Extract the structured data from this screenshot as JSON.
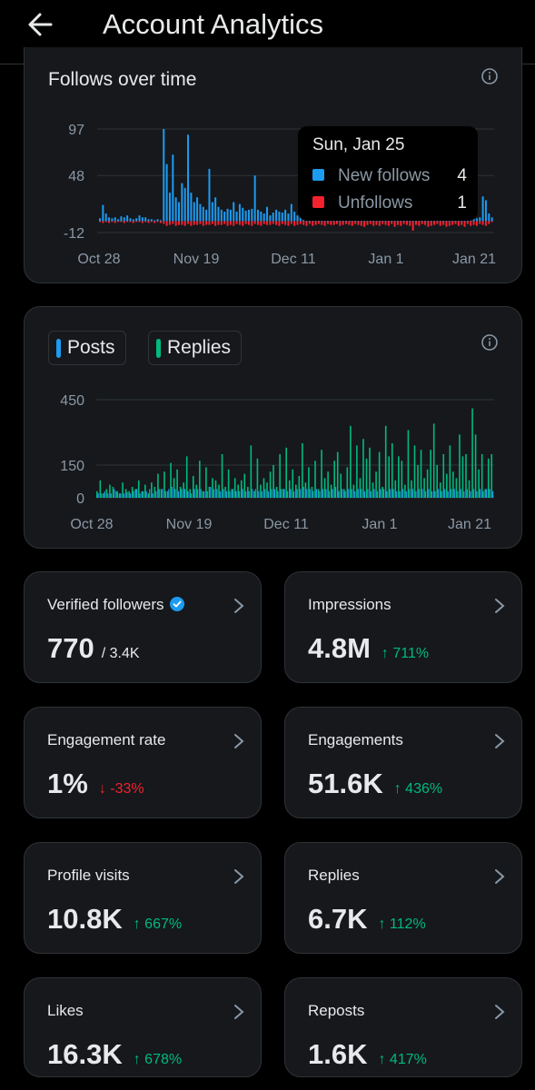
{
  "header": {
    "title": "Account Analytics"
  },
  "follows_card": {
    "title": "Follows over time"
  },
  "tooltip": {
    "date": "Sun, Jan 25",
    "rows": [
      {
        "label": "New follows",
        "value": "4",
        "color": "#1d9bf0"
      },
      {
        "label": "Unfollows",
        "value": "1",
        "color": "#f4212e"
      }
    ]
  },
  "posts_card": {
    "legend": [
      {
        "label": "Posts",
        "color": "#1d9bf0"
      },
      {
        "label": "Replies",
        "color": "#00ba7c"
      }
    ]
  },
  "chart_data": [
    {
      "type": "bar",
      "title": "Follows over time",
      "x_tick_labels": [
        "Oct 28",
        "Nov 19",
        "Dec 11",
        "Jan 1",
        "Jan 21"
      ],
      "y_tick_labels": [
        "97",
        "48",
        "-12"
      ],
      "ylim": [
        -12,
        97
      ],
      "series": [
        {
          "name": "New follows",
          "color": "#1d9bf0",
          "values": [
            3,
            17,
            8,
            4,
            3,
            4,
            2,
            5,
            4,
            6,
            3,
            2,
            3,
            6,
            4,
            4,
            2,
            2,
            1,
            2,
            1,
            97,
            60,
            30,
            70,
            25,
            20,
            40,
            35,
            91,
            30,
            20,
            25,
            18,
            15,
            12,
            55,
            20,
            25,
            15,
            12,
            10,
            13,
            12,
            20,
            10,
            18,
            14,
            11,
            12,
            13,
            48,
            12,
            10,
            8,
            15,
            6,
            9,
            12,
            10,
            9,
            12,
            8,
            18,
            10,
            6,
            12,
            22,
            15,
            28,
            9,
            6,
            14,
            8,
            8,
            12,
            7,
            4,
            6,
            5,
            8,
            30,
            5,
            4,
            3,
            8,
            4,
            5,
            3,
            2,
            4,
            3,
            2,
            5,
            3,
            6,
            4,
            5,
            3,
            2,
            5,
            5,
            4,
            7,
            12,
            9,
            4,
            6,
            5,
            4,
            3,
            4,
            6,
            3,
            5,
            3,
            4,
            4,
            4,
            6,
            4,
            8,
            5,
            6,
            3,
            4,
            26,
            22,
            8,
            4
          ]
        },
        {
          "name": "Unfollows",
          "color": "#f4212e",
          "values": [
            1,
            2,
            1,
            2,
            1,
            2,
            1,
            1,
            2,
            1,
            1,
            2,
            1,
            1,
            2,
            1,
            2,
            1,
            2,
            1,
            2,
            3,
            5,
            4,
            3,
            5,
            4,
            4,
            5,
            3,
            5,
            4,
            4,
            3,
            5,
            4,
            4,
            3,
            5,
            4,
            4,
            3,
            5,
            4,
            5,
            3,
            4,
            5,
            3,
            4,
            5,
            3,
            4,
            5,
            3,
            4,
            4,
            3,
            4,
            5,
            3,
            4,
            5,
            3,
            5,
            4,
            3,
            4,
            5,
            3,
            5,
            4,
            3,
            4,
            5,
            3,
            4,
            4,
            3,
            5,
            4,
            3,
            4,
            5,
            3,
            4,
            5,
            6,
            4,
            3,
            5,
            4,
            5,
            3,
            4,
            5,
            3,
            6,
            4,
            5,
            3,
            4,
            5,
            10,
            4,
            5,
            3,
            4,
            6,
            5,
            4,
            3,
            5,
            4,
            6,
            5,
            4,
            3,
            5,
            4,
            6,
            3,
            5,
            4,
            5,
            3,
            4,
            5,
            3,
            1
          ]
        }
      ]
    },
    {
      "type": "bar",
      "x_tick_labels": [
        "Oct 28",
        "Nov 19",
        "Dec 11",
        "Jan 1",
        "Jan 21"
      ],
      "y_tick_labels": [
        "450",
        "150",
        "0"
      ],
      "ylim": [
        0,
        450
      ],
      "series": [
        {
          "name": "Posts",
          "color": "#1d9bf0",
          "values": [
            20,
            20,
            30,
            20,
            20,
            40,
            30,
            20,
            20,
            25,
            20,
            30,
            40,
            20,
            30,
            30,
            40,
            20,
            30,
            40,
            40,
            30,
            40,
            50,
            40,
            30,
            40,
            40,
            30,
            20,
            40,
            40,
            40,
            30,
            30,
            50,
            40,
            40,
            30,
            40,
            30,
            30,
            40,
            30,
            30,
            40,
            30,
            30,
            40,
            40,
            30,
            30,
            40,
            30,
            40,
            40,
            30,
            40,
            40,
            30,
            40,
            30,
            40,
            40,
            50,
            40,
            40,
            30,
            40,
            30,
            40,
            40,
            30,
            40,
            50,
            30,
            40,
            30,
            40,
            40,
            30,
            40,
            40,
            30,
            40,
            30,
            40,
            30,
            40,
            40,
            30,
            40,
            40,
            30,
            30,
            40,
            30,
            40,
            40,
            30,
            40,
            40,
            30,
            40,
            30,
            30,
            40,
            30,
            40,
            30,
            40,
            40,
            30,
            40,
            30,
            40,
            30,
            40,
            30,
            40,
            30,
            40,
            40,
            30,
            40,
            30,
            30
          ]
        },
        {
          "name": "Replies",
          "color": "#00ba7c",
          "values": [
            30,
            80,
            20,
            40,
            60,
            50,
            30,
            20,
            70,
            40,
            30,
            50,
            40,
            80,
            30,
            60,
            20,
            70,
            50,
            110,
            40,
            120,
            30,
            160,
            90,
            130,
            50,
            70,
            190,
            40,
            100,
            60,
            170,
            30,
            140,
            50,
            90,
            80,
            60,
            200,
            50,
            130,
            40,
            90,
            60,
            80,
            110,
            50,
            240,
            30,
            180,
            60,
            90,
            70,
            120,
            150,
            50,
            200,
            40,
            230,
            80,
            130,
            60,
            100,
            250,
            70,
            140,
            50,
            170,
            40,
            220,
            90,
            120,
            60,
            170,
            210,
            110,
            40,
            140,
            330,
            60,
            240,
            90,
            270,
            180,
            230,
            70,
            120,
            210,
            50,
            330,
            190,
            250,
            80,
            190,
            170,
            60,
            310,
            80,
            240,
            150,
            220,
            90,
            130,
            220,
            340,
            150,
            70,
            200,
            110,
            240,
            120,
            90,
            290,
            190,
            200,
            80,
            410,
            290,
            130,
            200,
            40,
            180,
            200
          ]
        }
      ]
    }
  ],
  "stats": [
    {
      "label": "Verified followers",
      "value": "770",
      "sub": "/ 3.4K",
      "delta": "",
      "verified": true
    },
    {
      "label": "Impressions",
      "value": "4.8M",
      "delta": "↑ 711%",
      "dir": "up"
    },
    {
      "label": "Engagement rate",
      "value": "1%",
      "delta": "↓ -33%",
      "dir": "down"
    },
    {
      "label": "Engagements",
      "value": "51.6K",
      "delta": "↑ 436%",
      "dir": "up"
    },
    {
      "label": "Profile visits",
      "value": "10.8K",
      "delta": "↑ 667%",
      "dir": "up"
    },
    {
      "label": "Replies",
      "value": "6.7K",
      "delta": "↑ 112%",
      "dir": "up"
    },
    {
      "label": "Likes",
      "value": "16.3K",
      "delta": "↑ 678%",
      "dir": "up"
    },
    {
      "label": "Reposts",
      "value": "1.6K",
      "delta": "↑ 417%",
      "dir": "up"
    }
  ]
}
